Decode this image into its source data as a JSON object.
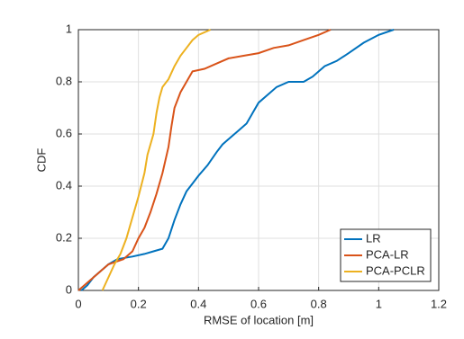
{
  "chart_data": {
    "type": "line",
    "xlabel": "RMSE of location [m]",
    "ylabel": "CDF",
    "xlim": [
      0,
      1.2
    ],
    "ylim": [
      0,
      1
    ],
    "xticks": [
      0,
      0.2,
      0.4,
      0.6,
      0.8,
      1,
      1.2
    ],
    "yticks": [
      0,
      0.2,
      0.4,
      0.6,
      0.8,
      1
    ],
    "grid": true,
    "legend": "lower-right",
    "series": [
      {
        "name": "LR",
        "color": "#0072BD",
        "x": [
          0.01,
          0.03,
          0.05,
          0.08,
          0.1,
          0.13,
          0.18,
          0.22,
          0.25,
          0.28,
          0.3,
          0.32,
          0.34,
          0.36,
          0.38,
          0.4,
          0.43,
          0.46,
          0.48,
          0.5,
          0.53,
          0.56,
          0.58,
          0.6,
          0.63,
          0.66,
          0.7,
          0.75,
          0.78,
          0.82,
          0.86,
          0.9,
          0.95,
          1.0,
          1.05
        ],
        "values": [
          0,
          0.02,
          0.05,
          0.08,
          0.1,
          0.12,
          0.13,
          0.14,
          0.15,
          0.16,
          0.2,
          0.27,
          0.33,
          0.38,
          0.41,
          0.44,
          0.48,
          0.53,
          0.56,
          0.58,
          0.61,
          0.64,
          0.68,
          0.72,
          0.75,
          0.78,
          0.8,
          0.8,
          0.82,
          0.86,
          0.88,
          0.91,
          0.95,
          0.98,
          1.0
        ]
      },
      {
        "name": "PCA-LR",
        "color": "#D95319",
        "x": [
          0.0,
          0.02,
          0.06,
          0.1,
          0.15,
          0.18,
          0.2,
          0.22,
          0.24,
          0.26,
          0.28,
          0.3,
          0.31,
          0.32,
          0.34,
          0.36,
          0.38,
          0.42,
          0.46,
          0.5,
          0.55,
          0.6,
          0.65,
          0.7,
          0.75,
          0.8,
          0.84
        ],
        "values": [
          0,
          0.02,
          0.06,
          0.1,
          0.12,
          0.15,
          0.2,
          0.24,
          0.3,
          0.37,
          0.45,
          0.55,
          0.63,
          0.7,
          0.76,
          0.8,
          0.84,
          0.85,
          0.87,
          0.89,
          0.9,
          0.91,
          0.93,
          0.94,
          0.96,
          0.98,
          1.0
        ]
      },
      {
        "name": "PCA-PCLR",
        "color": "#EDB120",
        "x": [
          0.08,
          0.1,
          0.12,
          0.14,
          0.16,
          0.18,
          0.2,
          0.22,
          0.23,
          0.25,
          0.26,
          0.27,
          0.28,
          0.3,
          0.32,
          0.34,
          0.36,
          0.38,
          0.4,
          0.44
        ],
        "values": [
          0,
          0.05,
          0.1,
          0.14,
          0.2,
          0.28,
          0.36,
          0.45,
          0.52,
          0.6,
          0.68,
          0.74,
          0.78,
          0.81,
          0.86,
          0.9,
          0.93,
          0.96,
          0.98,
          1.0
        ]
      }
    ]
  }
}
